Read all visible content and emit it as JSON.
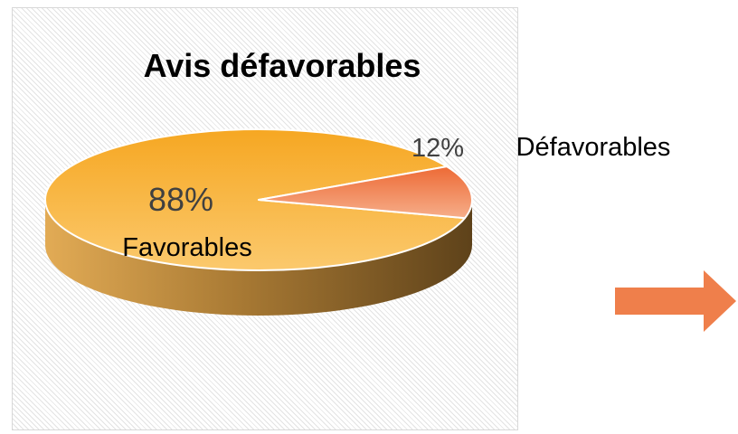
{
  "chart_data": {
    "type": "pie",
    "style": "3d",
    "title": "Avis défavorables",
    "categories": [
      "Favorables",
      "Défavorables"
    ],
    "values": [
      88,
      12
    ],
    "value_labels": [
      "88%",
      "12%"
    ],
    "colors": [
      "#f7b540",
      "#ee7b4e"
    ],
    "legend": "none"
  },
  "colors": {
    "arrow": "#ef7f4b",
    "panel_border": "#d8d8d8",
    "hatch": "#e3e3e3"
  }
}
